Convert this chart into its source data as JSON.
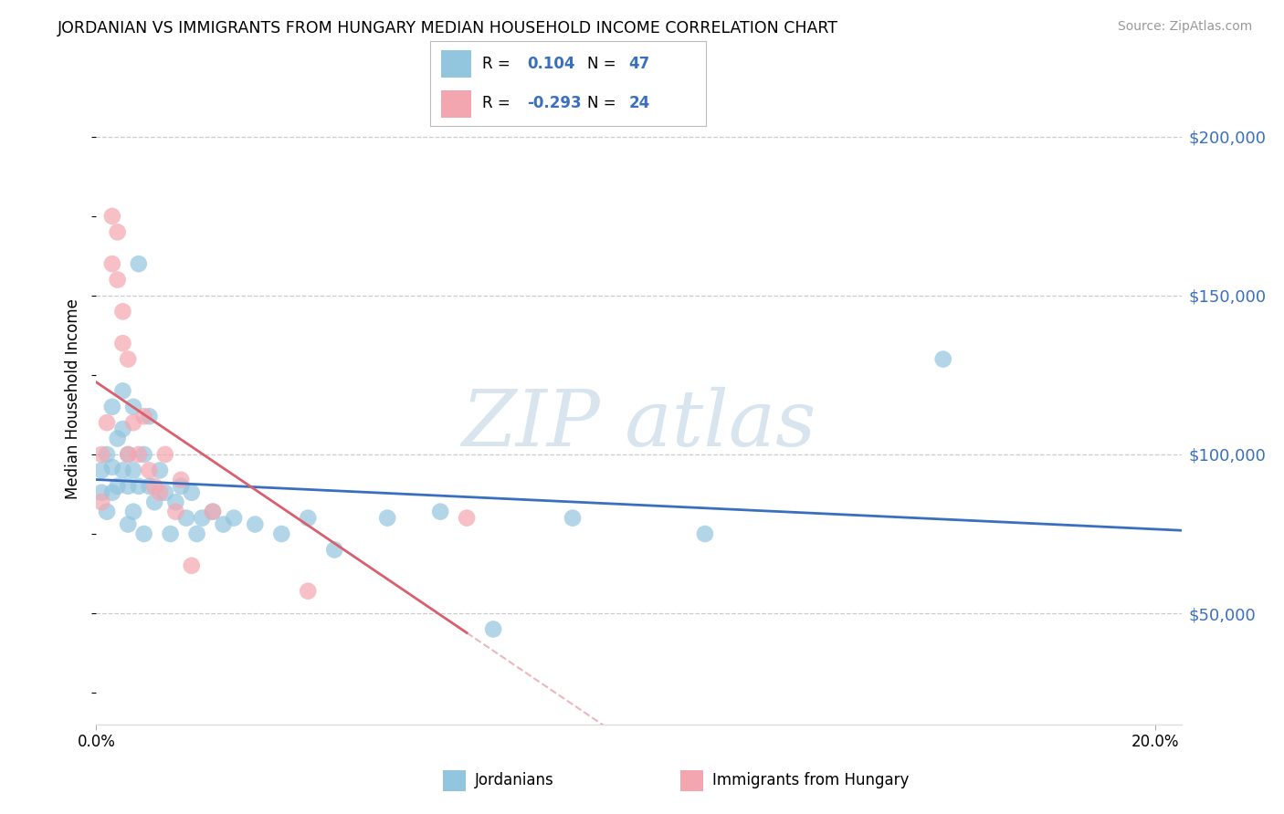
{
  "title": "JORDANIAN VS IMMIGRANTS FROM HUNGARY MEDIAN HOUSEHOLD INCOME CORRELATION CHART",
  "source": "Source: ZipAtlas.com",
  "ylabel": "Median Household Income",
  "yticks": [
    50000,
    100000,
    150000,
    200000
  ],
  "ytick_labels": [
    "$50,000",
    "$100,000",
    "$150,000",
    "$200,000"
  ],
  "xlim": [
    0.0,
    0.205
  ],
  "ylim": [
    15000,
    220000
  ],
  "legend_labels": [
    "Jordanians",
    "Immigrants from Hungary"
  ],
  "blue_color": "#92c5de",
  "pink_color": "#f4a6b0",
  "blue_line_color": "#3a6fbf",
  "pink_line_color": "#d95f6e",
  "jordanian_x": [
    0.001,
    0.001,
    0.002,
    0.002,
    0.003,
    0.003,
    0.003,
    0.004,
    0.004,
    0.005,
    0.005,
    0.005,
    0.006,
    0.006,
    0.006,
    0.007,
    0.007,
    0.007,
    0.008,
    0.008,
    0.009,
    0.009,
    0.01,
    0.01,
    0.011,
    0.012,
    0.013,
    0.014,
    0.015,
    0.016,
    0.017,
    0.018,
    0.019,
    0.02,
    0.022,
    0.024,
    0.026,
    0.03,
    0.035,
    0.04,
    0.045,
    0.055,
    0.065,
    0.075,
    0.09,
    0.115,
    0.16
  ],
  "jordanian_y": [
    95000,
    88000,
    100000,
    82000,
    115000,
    96000,
    88000,
    105000,
    90000,
    120000,
    108000,
    95000,
    100000,
    90000,
    78000,
    115000,
    95000,
    82000,
    160000,
    90000,
    100000,
    75000,
    112000,
    90000,
    85000,
    95000,
    88000,
    75000,
    85000,
    90000,
    80000,
    88000,
    75000,
    80000,
    82000,
    78000,
    80000,
    78000,
    75000,
    80000,
    70000,
    80000,
    82000,
    45000,
    80000,
    75000,
    130000
  ],
  "hungary_x": [
    0.001,
    0.001,
    0.002,
    0.003,
    0.003,
    0.004,
    0.004,
    0.005,
    0.005,
    0.006,
    0.006,
    0.007,
    0.008,
    0.009,
    0.01,
    0.011,
    0.012,
    0.013,
    0.015,
    0.016,
    0.018,
    0.022,
    0.04,
    0.07
  ],
  "hungary_y": [
    100000,
    85000,
    110000,
    175000,
    160000,
    170000,
    155000,
    145000,
    135000,
    130000,
    100000,
    110000,
    100000,
    112000,
    95000,
    90000,
    88000,
    100000,
    82000,
    92000,
    65000,
    82000,
    57000,
    80000
  ]
}
